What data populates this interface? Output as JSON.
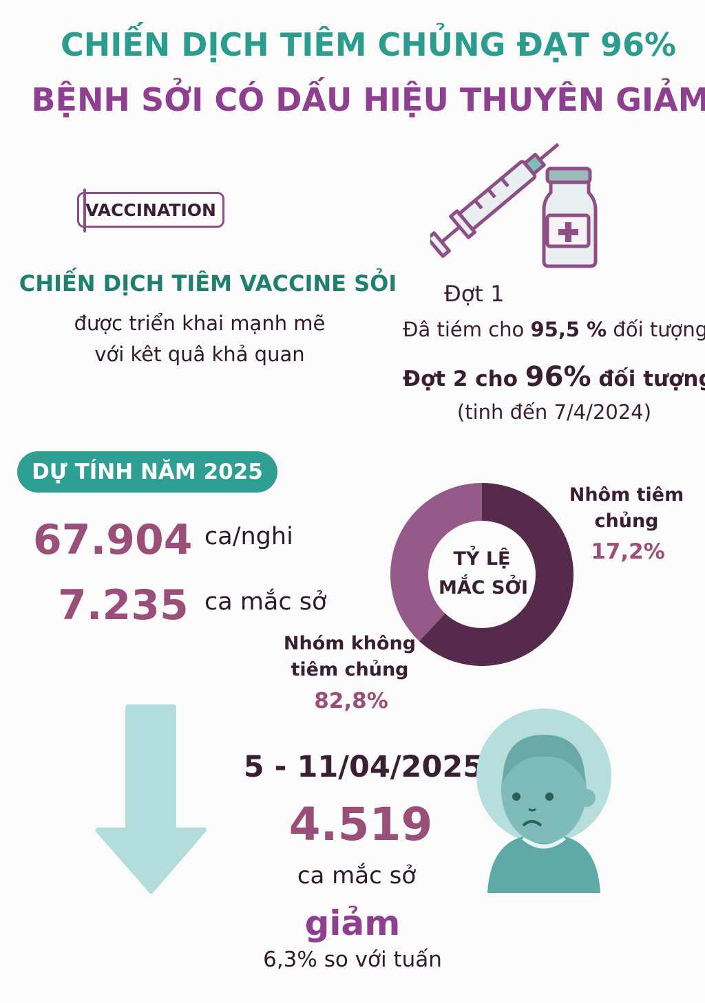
{
  "header": {
    "title_line1": "CHIẾN DỊCH TIÊM CHỦNG ĐẠT 96%",
    "title_line2": "BỆNH SỞI CÓ DẤU HIỆU THUYÊN GIẢM"
  },
  "campaign": {
    "badge": "VACCINATION",
    "heading": "CHIẾN DỊCH TIÊM VACCINE SỎI",
    "line1": "được triển khai mạnh mẽ",
    "line2": "với kêt quâ khả quan"
  },
  "rounds": {
    "round1": "Đợt 1",
    "round1_prefix": "Đâ tiém cho ",
    "round1_value": "95,5 %",
    "round1_suffix": " đối tượng",
    "round2_prefix": "Đợt 2 cho ",
    "round2_value": "96%",
    "round2_suffix": " đối tượng",
    "date_note": "(tinh đến 7/4/2024)"
  },
  "forecast": {
    "pill": "DỰ TÍNH NĂM 2025",
    "suspected_value": "67.904",
    "suspected_unit": "ca/nghi",
    "confirmed_value": "7.235",
    "confirmed_unit": "ca mắc sở"
  },
  "chart_data": {
    "type": "pie",
    "center_label_line1": "TỶ LỆ",
    "center_label_line2": "MẮC SỞI",
    "series": [
      {
        "name": "Nhôm tiêm chủng",
        "value": 17.2,
        "label": "17,2%",
        "color": "#552a4a"
      },
      {
        "name": "Nhóm không tiêm chủng",
        "value": 82.8,
        "label": "82,8%",
        "color": "#955a8a"
      }
    ],
    "label_vaccinated_line1": "Nhôm tiêm",
    "label_vaccinated_line2": "chủng",
    "label_unvaccinated_line1": "Nhóm không",
    "label_unvaccinated_line2": "tiêm chủng"
  },
  "weekly": {
    "date_range": "5 - 11/04/2025",
    "cases": "4.519",
    "cases_unit": "ca mắc sở",
    "trend": "giảm",
    "trend_detail": "6,3% so với tuấn"
  },
  "colors": {
    "teal": "#2a9d8f",
    "purple": "#8e3f8f",
    "number": "#9a4f78",
    "arrow": "#b2dddc"
  }
}
